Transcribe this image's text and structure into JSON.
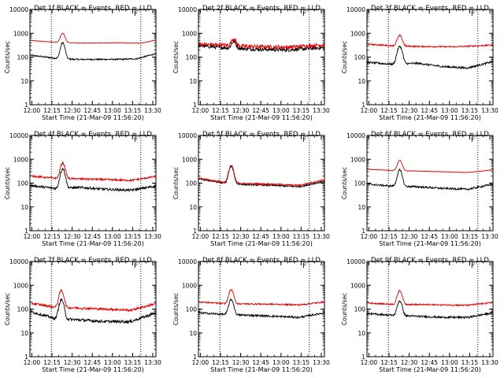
{
  "figure": {
    "background": "#ffffff",
    "events_color": "#000000",
    "lld_color": "#e00000"
  },
  "chart_data": [
    {
      "type": "line",
      "title": "Det 1f BLACK = Events, RED = LLD",
      "xlabel": "Start Time (21-Mar-09 11:56:20)",
      "ylabel": "Counts/sec",
      "yscale": "log",
      "ylim": [
        1,
        10000
      ],
      "xlim": [
        0,
        100
      ],
      "xtick_labels": [
        "12:00",
        "12:15",
        "12:30",
        "12:45",
        "13:00",
        "13:15",
        "13:30"
      ],
      "ytick_labels": [
        "1",
        "10",
        "100",
        "1000",
        "10000"
      ],
      "flare_marker": "F",
      "vline_x": [
        17,
        88
      ],
      "series": [
        {
          "name": "Events",
          "base": [
            [
              0,
              120
            ],
            [
              20,
              90
            ],
            [
              35,
              80
            ],
            [
              50,
              80
            ],
            [
              70,
              80
            ],
            [
              85,
              85
            ],
            [
              100,
              140
            ]
          ],
          "peak": {
            "x": 26,
            "value": 400,
            "width": 1.5
          },
          "noise": 0.03
        },
        {
          "name": "LLD",
          "base": [
            [
              0,
              500
            ],
            [
              20,
              420
            ],
            [
              40,
              390
            ],
            [
              70,
              400
            ],
            [
              88,
              380
            ],
            [
              100,
              520
            ]
          ],
          "peak": {
            "x": 26,
            "value": 1000,
            "width": 1.6
          },
          "noise": 0.01
        }
      ]
    },
    {
      "type": "line",
      "title": "Det 2f BLACK = Events, RED = LLD",
      "xlabel": "Start Time (21-Mar-09 11:56:20)",
      "ylabel": "Counts/sec",
      "yscale": "log",
      "ylim": [
        1,
        10000
      ],
      "xlim": [
        0,
        100
      ],
      "xtick_labels": [
        "12:00",
        "12:15",
        "12:30",
        "12:45",
        "13:00",
        "13:15",
        "13:30"
      ],
      "ytick_labels": [
        "1",
        "10",
        "100",
        "1000",
        "10000"
      ],
      "flare_marker": "F",
      "vline_x": [
        17,
        88
      ],
      "series": [
        {
          "name": "Events",
          "base": [
            [
              0,
              300
            ],
            [
              20,
              250
            ],
            [
              40,
              220
            ],
            [
              70,
              200
            ],
            [
              100,
              250
            ]
          ],
          "peak": {
            "x": 28,
            "value": 450,
            "width": 1.6
          },
          "noise": 0.08
        },
        {
          "name": "LLD",
          "base": [
            [
              0,
              350
            ],
            [
              20,
              320
            ],
            [
              40,
              280
            ],
            [
              70,
              260
            ],
            [
              100,
              330
            ]
          ],
          "peak": {
            "x": 28,
            "value": 600,
            "width": 1.6
          },
          "noise": 0.08
        }
      ]
    },
    {
      "type": "line",
      "title": "Det 3f BLACK = Events, RED = LLD",
      "xlabel": "Start Time (21-Mar-09 11:56:20)",
      "ylabel": "Counts/sec",
      "yscale": "log",
      "ylim": [
        1,
        10000
      ],
      "xlim": [
        0,
        100
      ],
      "xtick_labels": [
        "12:00",
        "12:15",
        "12:30",
        "12:45",
        "13:00",
        "13:15",
        "13:30"
      ],
      "ytick_labels": [
        "1",
        "10",
        "100",
        "1000",
        "10000"
      ],
      "flare_marker": "F",
      "vline_x": [
        17,
        88
      ],
      "series": [
        {
          "name": "Events",
          "base": [
            [
              0,
              60
            ],
            [
              20,
              50
            ],
            [
              40,
              55
            ],
            [
              60,
              40
            ],
            [
              80,
              35
            ],
            [
              100,
              65
            ]
          ],
          "peak": {
            "x": 26,
            "value": 280,
            "width": 1.7
          },
          "noise": 0.04
        },
        {
          "name": "LLD",
          "base": [
            [
              0,
              350
            ],
            [
              20,
              300
            ],
            [
              40,
              280
            ],
            [
              70,
              270
            ],
            [
              100,
              320
            ]
          ],
          "peak": {
            "x": 26,
            "value": 800,
            "width": 1.7
          },
          "noise": 0.03
        }
      ]
    },
    {
      "type": "line",
      "title": "Det 4f BLACK = Events, RED = LLD",
      "xlabel": "Start Time (21-Mar-09 11:56:20)",
      "ylabel": "Counts/sec",
      "yscale": "log",
      "ylim": [
        1,
        10000
      ],
      "xlim": [
        0,
        100
      ],
      "xtick_labels": [
        "12:00",
        "12:15",
        "12:30",
        "12:45",
        "13:00",
        "13:15",
        "13:30"
      ],
      "ytick_labels": [
        "1",
        "10",
        "100",
        "1000",
        "10000"
      ],
      "flare_marker": "F",
      "vline_x": [
        17,
        88
      ],
      "series": [
        {
          "name": "Events",
          "base": [
            [
              0,
              80
            ],
            [
              20,
              60
            ],
            [
              40,
              65
            ],
            [
              60,
              55
            ],
            [
              80,
              50
            ],
            [
              100,
              75
            ]
          ],
          "peak": {
            "x": 26,
            "value": 400,
            "width": 1.6
          },
          "noise": 0.05
        },
        {
          "name": "LLD",
          "base": [
            [
              0,
              200
            ],
            [
              20,
              160
            ],
            [
              40,
              150
            ],
            [
              60,
              140
            ],
            [
              80,
              130
            ],
            [
              100,
              190
            ]
          ],
          "peak": {
            "x": 26,
            "value": 700,
            "width": 1.6
          },
          "noise": 0.04
        }
      ]
    },
    {
      "type": "line",
      "title": "Det 5f BLACK = Events, RED = LLD",
      "xlabel": "Start Time (21-Mar-09 11:56:20)",
      "ylabel": "Counts/sec",
      "yscale": "log",
      "ylim": [
        1,
        10000
      ],
      "xlim": [
        0,
        100
      ],
      "xtick_labels": [
        "12:00",
        "12:15",
        "12:30",
        "12:45",
        "13:00",
        "13:15",
        "13:30"
      ],
      "ytick_labels": [
        "1",
        "10",
        "100",
        "1000",
        "10000"
      ],
      "flare_marker": "F",
      "vline_x": [
        17,
        88
      ],
      "series": [
        {
          "name": "Events",
          "base": [
            [
              0,
              150
            ],
            [
              20,
              100
            ],
            [
              40,
              85
            ],
            [
              60,
              80
            ],
            [
              80,
              70
            ],
            [
              100,
              120
            ]
          ],
          "peak": {
            "x": 26,
            "value": 500,
            "width": 1.6
          },
          "noise": 0.03
        },
        {
          "name": "LLD",
          "base": [
            [
              0,
              160
            ],
            [
              20,
              110
            ],
            [
              40,
              95
            ],
            [
              60,
              90
            ],
            [
              80,
              80
            ],
            [
              100,
              140
            ]
          ],
          "peak": {
            "x": 26,
            "value": 550,
            "width": 1.6
          },
          "noise": 0.03
        }
      ]
    },
    {
      "type": "line",
      "title": "Det 6f BLACK = Events, RED = LLD",
      "xlabel": "Start Time (21-Mar-09 11:56:20)",
      "ylabel": "Counts/sec",
      "yscale": "log",
      "ylim": [
        1,
        10000
      ],
      "xlim": [
        0,
        100
      ],
      "xtick_labels": [
        "12:00",
        "12:15",
        "12:30",
        "12:45",
        "13:00",
        "13:15",
        "13:30"
      ],
      "ytick_labels": [
        "1",
        "10",
        "100",
        "1000",
        "10000"
      ],
      "flare_marker": "F",
      "vline_x": [
        17,
        88
      ],
      "series": [
        {
          "name": "Events",
          "base": [
            [
              0,
              90
            ],
            [
              20,
              75
            ],
            [
              40,
              70
            ],
            [
              60,
              60
            ],
            [
              80,
              55
            ],
            [
              100,
              90
            ]
          ],
          "peak": {
            "x": 26,
            "value": 350,
            "width": 1.6
          },
          "noise": 0.04
        },
        {
          "name": "LLD",
          "base": [
            [
              0,
              380
            ],
            [
              20,
              340
            ],
            [
              40,
              320
            ],
            [
              60,
              300
            ],
            [
              80,
              280
            ],
            [
              100,
              360
            ]
          ],
          "peak": {
            "x": 26,
            "value": 900,
            "width": 1.6
          },
          "noise": 0.01
        }
      ]
    },
    {
      "type": "line",
      "title": "Det 7f BLACK = Events, RED = LLD",
      "xlabel": "Start Time (21-Mar-09 11:56:20)",
      "ylabel": "Counts/sec",
      "yscale": "log",
      "ylim": [
        1,
        10000
      ],
      "xlim": [
        0,
        100
      ],
      "xtick_labels": [
        "12:00",
        "12:15",
        "12:30",
        "12:45",
        "13:00",
        "13:15",
        "13:30"
      ],
      "ytick_labels": [
        "1",
        "10",
        "100",
        "1000",
        "10000"
      ],
      "flare_marker": "F",
      "vline_x": [
        17,
        88
      ],
      "series": [
        {
          "name": "Events",
          "base": [
            [
              0,
              80
            ],
            [
              20,
              40
            ],
            [
              40,
              35
            ],
            [
              60,
              30
            ],
            [
              80,
              30
            ],
            [
              100,
              70
            ]
          ],
          "peak": {
            "x": 25,
            "value": 250,
            "width": 1.6
          },
          "noise": 0.06
        },
        {
          "name": "LLD",
          "base": [
            [
              0,
              180
            ],
            [
              20,
              120
            ],
            [
              40,
              110
            ],
            [
              60,
              100
            ],
            [
              80,
              90
            ],
            [
              100,
              170
            ]
          ],
          "peak": {
            "x": 25,
            "value": 600,
            "width": 1.6
          },
          "noise": 0.05
        }
      ]
    },
    {
      "type": "line",
      "title": "Det 8f BLACK = Events, RED = LLD",
      "xlabel": "Start Time (21-Mar-09 11:56:20)",
      "ylabel": "Counts/sec",
      "yscale": "log",
      "ylim": [
        1,
        10000
      ],
      "xlim": [
        0,
        100
      ],
      "xtick_labels": [
        "12:00",
        "12:15",
        "12:30",
        "12:45",
        "13:00",
        "13:15",
        "13:30"
      ],
      "ytick_labels": [
        "1",
        "10",
        "100",
        "1000",
        "10000"
      ],
      "flare_marker": "F",
      "vline_x": [
        17,
        88
      ],
      "series": [
        {
          "name": "Events",
          "base": [
            [
              0,
              70
            ],
            [
              20,
              60
            ],
            [
              40,
              55
            ],
            [
              60,
              50
            ],
            [
              80,
              45
            ],
            [
              100,
              70
            ]
          ],
          "peak": {
            "x": 26,
            "value": 250,
            "width": 1.6
          },
          "noise": 0.04
        },
        {
          "name": "LLD",
          "base": [
            [
              0,
              200
            ],
            [
              20,
              170
            ],
            [
              40,
              165
            ],
            [
              60,
              160
            ],
            [
              80,
              150
            ],
            [
              100,
              200
            ]
          ],
          "peak": {
            "x": 26,
            "value": 650,
            "width": 1.6
          },
          "noise": 0.03
        }
      ]
    },
    {
      "type": "line",
      "title": "Det 9f BLACK = Events, RED = LLD",
      "xlabel": "Start Time (21-Mar-09 11:56:20)",
      "ylabel": "Counts/sec",
      "yscale": "log",
      "ylim": [
        1,
        10000
      ],
      "xlim": [
        0,
        100
      ],
      "xtick_labels": [
        "12:00",
        "12:15",
        "12:30",
        "12:45",
        "13:00",
        "13:15",
        "13:30"
      ],
      "ytick_labels": [
        "1",
        "10",
        "100",
        "1000",
        "10000"
      ],
      "flare_marker": "F",
      "vline_x": [
        17,
        88
      ],
      "series": [
        {
          "name": "Events",
          "base": [
            [
              0,
              65
            ],
            [
              20,
              55
            ],
            [
              40,
              50
            ],
            [
              60,
              45
            ],
            [
              80,
              45
            ],
            [
              100,
              70
            ]
          ],
          "peak": {
            "x": 26,
            "value": 220,
            "width": 1.6
          },
          "noise": 0.04
        },
        {
          "name": "LLD",
          "base": [
            [
              0,
              180
            ],
            [
              20,
              160
            ],
            [
              40,
              155
            ],
            [
              60,
              150
            ],
            [
              80,
              145
            ],
            [
              100,
              190
            ]
          ],
          "peak": {
            "x": 26,
            "value": 600,
            "width": 1.6
          },
          "noise": 0.03
        }
      ]
    }
  ]
}
